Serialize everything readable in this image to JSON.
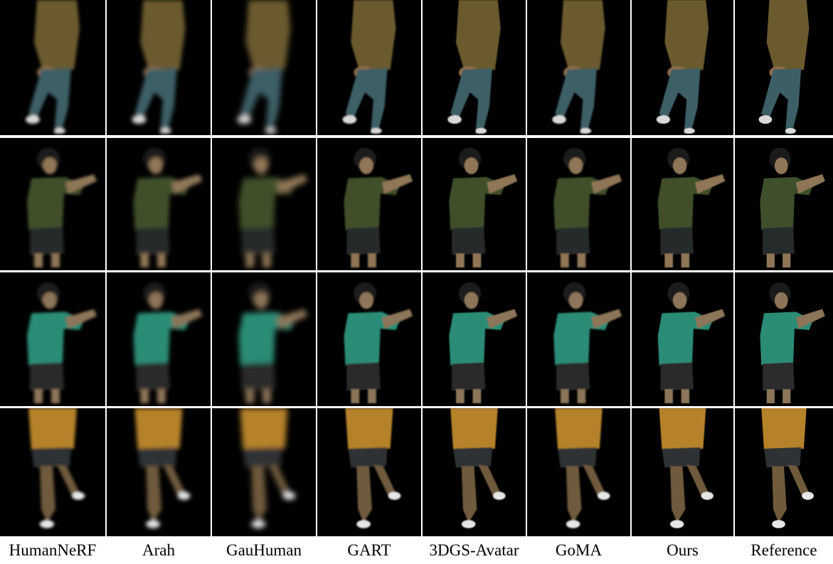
{
  "columns": [
    "HumanNeRF",
    "Arah",
    "GauHuman",
    "GART",
    "3DGS-Avatar",
    "GoMA",
    "Ours",
    "Reference"
  ],
  "rows": [
    {
      "subject": "olive-jacket-jeans",
      "top_color": "#6b5a2e",
      "bottom_color": "#3c5f66",
      "shoe_color": "#d9d9d9",
      "skin_color": "#8a6a4a"
    },
    {
      "subject": "green-tshirt-dark-shorts",
      "top_color": "#3f4f2c",
      "bottom_color": "#262b2c",
      "shoe_color": "#333333",
      "skin_color": "#8f7657"
    },
    {
      "subject": "teal-tshirt-dark-shorts",
      "top_color": "#2b8c76",
      "bottom_color": "#2c2c2c",
      "shoe_color": "#333333",
      "skin_color": "#8c7458"
    },
    {
      "subject": "orange-shirt-shorts",
      "top_color": "#b5822a",
      "bottom_color": "#2e3234",
      "shoe_color": "#e6e6e6",
      "skin_color": "#6f5a3c"
    }
  ]
}
